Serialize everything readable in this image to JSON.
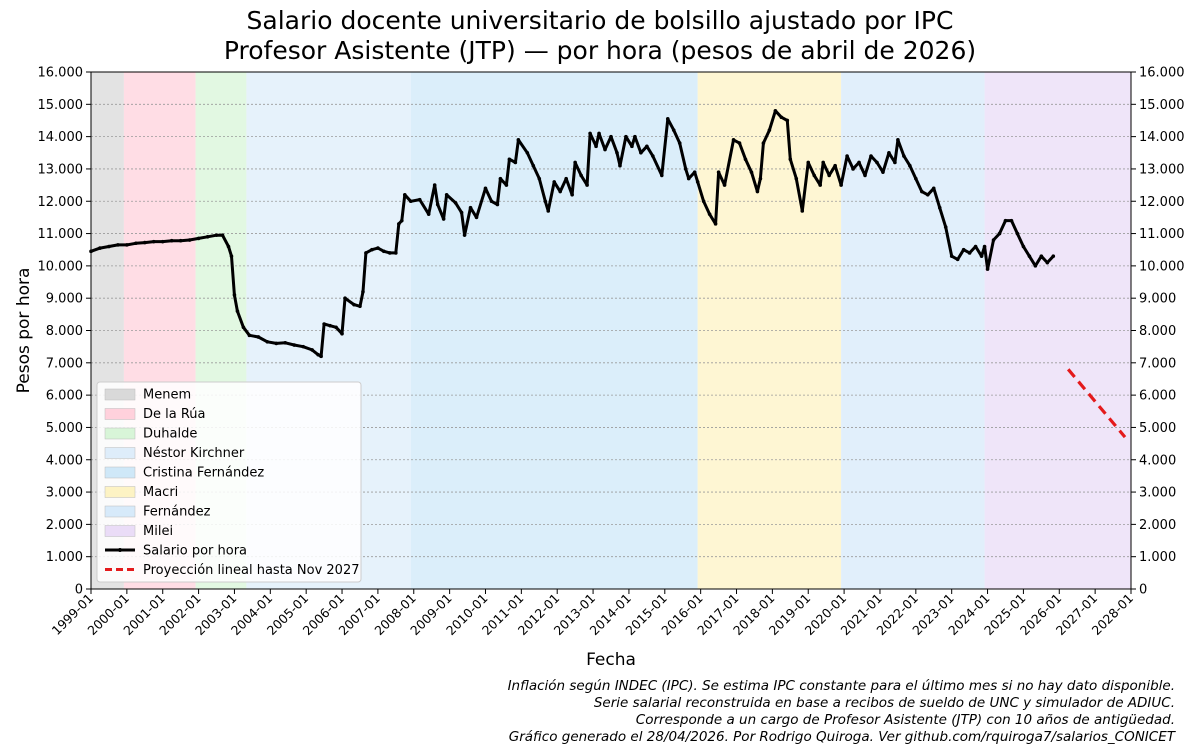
{
  "chart_data": {
    "type": "line",
    "title": "Salario docente universitario de bolsillo ajustado por IPC",
    "subtitle": "Profesor Asistente (JTP) — por hora (pesos de abril de 2026)",
    "xlabel": "Fecha",
    "ylabel": "Pesos por hora",
    "xlim": [
      "1999-01",
      "2028-01"
    ],
    "ylim": [
      0,
      16000
    ],
    "y_ticks": [
      0,
      1000,
      2000,
      3000,
      4000,
      5000,
      6000,
      7000,
      8000,
      9000,
      10000,
      11000,
      12000,
      13000,
      14000,
      15000,
      16000
    ],
    "y_tick_labels": [
      "0",
      "1.000",
      "2.000",
      "3.000",
      "4.000",
      "5.000",
      "6.000",
      "7.000",
      "8.000",
      "9.000",
      "10.000",
      "11.000",
      "12.000",
      "13.000",
      "14.000",
      "15.000",
      "16.000"
    ],
    "x_tick_labels": [
      "1999-01",
      "2000-01",
      "2001-01",
      "2002-01",
      "2003-01",
      "2004-01",
      "2005-01",
      "2006-01",
      "2007-01",
      "2008-01",
      "2009-01",
      "2010-01",
      "2011-01",
      "2012-01",
      "2013-01",
      "2014-01",
      "2015-01",
      "2016-01",
      "2017-01",
      "2018-01",
      "2019-01",
      "2020-01",
      "2021-01",
      "2022-01",
      "2023-01",
      "2024-01",
      "2025-01",
      "2026-01",
      "2027-01",
      "2028-01"
    ],
    "grid": "horizontal dashed",
    "legend_position": "lower-left",
    "periods": [
      {
        "name": "Menem",
        "start": "1999-01",
        "end": "1999-12",
        "color": "#d9d9d9"
      },
      {
        "name": "De la Rúa",
        "start": "1999-12",
        "end": "2001-12",
        "color": "#ffd1dc"
      },
      {
        "name": "Duhalde",
        "start": "2001-12",
        "end": "2003-05",
        "color": "#d8f5d8"
      },
      {
        "name": "Néstor Kirchner",
        "start": "2003-05",
        "end": "2007-12",
        "color": "#deedfa"
      },
      {
        "name": "Cristina Fernández",
        "start": "2007-12",
        "end": "2015-12",
        "color": "#cfe8f8"
      },
      {
        "name": "Macri",
        "start": "2015-12",
        "end": "2019-12",
        "color": "#fdf3c4"
      },
      {
        "name": "Fernández",
        "start": "2019-12",
        "end": "2023-12",
        "color": "#d7eafa"
      },
      {
        "name": "Milei",
        "start": "2023-12",
        "end": "2028-01",
        "color": "#eadcf7"
      }
    ],
    "series": [
      {
        "name": "Salario por hora",
        "color": "#000000",
        "style": "solid",
        "points": [
          [
            "1999-01",
            10450
          ],
          [
            "1999-04",
            10550
          ],
          [
            "1999-07",
            10600
          ],
          [
            "1999-10",
            10650
          ],
          [
            "2000-01",
            10650
          ],
          [
            "2000-04",
            10700
          ],
          [
            "2000-07",
            10720
          ],
          [
            "2000-10",
            10750
          ],
          [
            "2001-01",
            10750
          ],
          [
            "2001-04",
            10780
          ],
          [
            "2001-07",
            10780
          ],
          [
            "2001-10",
            10800
          ],
          [
            "2002-01",
            10850
          ],
          [
            "2002-04",
            10900
          ],
          [
            "2002-07",
            10950
          ],
          [
            "2002-09",
            10950
          ],
          [
            "2002-11",
            10600
          ],
          [
            "2002-12",
            10300
          ],
          [
            "2003-01",
            9100
          ],
          [
            "2003-02",
            8600
          ],
          [
            "2003-04",
            8100
          ],
          [
            "2003-06",
            7850
          ],
          [
            "2003-09",
            7800
          ],
          [
            "2003-12",
            7650
          ],
          [
            "2004-03",
            7600
          ],
          [
            "2004-06",
            7620
          ],
          [
            "2004-09",
            7550
          ],
          [
            "2004-12",
            7500
          ],
          [
            "2005-03",
            7400
          ],
          [
            "2005-05",
            7250
          ],
          [
            "2005-06",
            7200
          ],
          [
            "2005-07",
            8200
          ],
          [
            "2005-09",
            8150
          ],
          [
            "2005-11",
            8100
          ],
          [
            "2006-01",
            7900
          ],
          [
            "2006-02",
            9000
          ],
          [
            "2006-05",
            8800
          ],
          [
            "2006-07",
            8750
          ],
          [
            "2006-08",
            9200
          ],
          [
            "2006-09",
            10400
          ],
          [
            "2006-11",
            10500
          ],
          [
            "2007-01",
            10550
          ],
          [
            "2007-03",
            10450
          ],
          [
            "2007-05",
            10400
          ],
          [
            "2007-07",
            10400
          ],
          [
            "2007-08",
            11300
          ],
          [
            "2007-09",
            11400
          ],
          [
            "2007-10",
            12200
          ],
          [
            "2007-12",
            12000
          ],
          [
            "2008-03",
            12050
          ],
          [
            "2008-06",
            11600
          ],
          [
            "2008-08",
            12500
          ],
          [
            "2008-09",
            11900
          ],
          [
            "2008-11",
            11450
          ],
          [
            "2008-12",
            12200
          ],
          [
            "2009-03",
            11950
          ],
          [
            "2009-05",
            11650
          ],
          [
            "2009-06",
            10950
          ],
          [
            "2009-08",
            11800
          ],
          [
            "2009-10",
            11500
          ],
          [
            "2010-01",
            12400
          ],
          [
            "2010-03",
            12000
          ],
          [
            "2010-05",
            11900
          ],
          [
            "2010-06",
            12700
          ],
          [
            "2010-08",
            12500
          ],
          [
            "2010-09",
            13300
          ],
          [
            "2010-11",
            13200
          ],
          [
            "2010-12",
            13900
          ],
          [
            "2011-03",
            13500
          ],
          [
            "2011-05",
            13100
          ],
          [
            "2011-07",
            12700
          ],
          [
            "2011-09",
            12000
          ],
          [
            "2011-10",
            11700
          ],
          [
            "2011-12",
            12600
          ],
          [
            "2012-02",
            12300
          ],
          [
            "2012-04",
            12700
          ],
          [
            "2012-06",
            12200
          ],
          [
            "2012-07",
            13200
          ],
          [
            "2012-09",
            12800
          ],
          [
            "2012-11",
            12500
          ],
          [
            "2012-12",
            14100
          ],
          [
            "2013-02",
            13700
          ],
          [
            "2013-03",
            14100
          ],
          [
            "2013-05",
            13600
          ],
          [
            "2013-07",
            14000
          ],
          [
            "2013-09",
            13500
          ],
          [
            "2013-10",
            13100
          ],
          [
            "2013-12",
            14000
          ],
          [
            "2014-02",
            13700
          ],
          [
            "2014-03",
            14000
          ],
          [
            "2014-05",
            13500
          ],
          [
            "2014-07",
            13700
          ],
          [
            "2014-09",
            13400
          ],
          [
            "2014-12",
            12800
          ],
          [
            "2015-02",
            14550
          ],
          [
            "2015-04",
            14200
          ],
          [
            "2015-06",
            13800
          ],
          [
            "2015-08",
            13000
          ],
          [
            "2015-09",
            12700
          ],
          [
            "2015-11",
            12900
          ],
          [
            "2015-12",
            12600
          ],
          [
            "2016-02",
            12000
          ],
          [
            "2016-04",
            11600
          ],
          [
            "2016-06",
            11300
          ],
          [
            "2016-07",
            12900
          ],
          [
            "2016-09",
            12500
          ],
          [
            "2016-12",
            13900
          ],
          [
            "2017-02",
            13800
          ],
          [
            "2017-04",
            13300
          ],
          [
            "2017-06",
            12900
          ],
          [
            "2017-08",
            12300
          ],
          [
            "2017-09",
            12700
          ],
          [
            "2017-10",
            13800
          ],
          [
            "2017-12",
            14200
          ],
          [
            "2018-02",
            14800
          ],
          [
            "2018-04",
            14600
          ],
          [
            "2018-06",
            14500
          ],
          [
            "2018-07",
            13300
          ],
          [
            "2018-09",
            12700
          ],
          [
            "2018-11",
            11700
          ],
          [
            "2019-01",
            13200
          ],
          [
            "2019-03",
            12800
          ],
          [
            "2019-05",
            12500
          ],
          [
            "2019-06",
            13200
          ],
          [
            "2019-08",
            12800
          ],
          [
            "2019-10",
            13100
          ],
          [
            "2019-12",
            12500
          ],
          [
            "2020-02",
            13400
          ],
          [
            "2020-04",
            13000
          ],
          [
            "2020-06",
            13200
          ],
          [
            "2020-08",
            12800
          ],
          [
            "2020-10",
            13400
          ],
          [
            "2020-12",
            13200
          ],
          [
            "2021-02",
            12900
          ],
          [
            "2021-04",
            13500
          ],
          [
            "2021-06",
            13200
          ],
          [
            "2021-07",
            13900
          ],
          [
            "2021-09",
            13400
          ],
          [
            "2021-11",
            13100
          ],
          [
            "2022-01",
            12700
          ],
          [
            "2022-03",
            12300
          ],
          [
            "2022-05",
            12200
          ],
          [
            "2022-07",
            12400
          ],
          [
            "2022-09",
            11800
          ],
          [
            "2022-11",
            11200
          ],
          [
            "2023-01",
            10300
          ],
          [
            "2023-03",
            10200
          ],
          [
            "2023-05",
            10500
          ],
          [
            "2023-07",
            10400
          ],
          [
            "2023-09",
            10600
          ],
          [
            "2023-11",
            10300
          ],
          [
            "2023-12",
            10600
          ],
          [
            "2024-01",
            9900
          ],
          [
            "2024-03",
            10800
          ],
          [
            "2024-05",
            11000
          ],
          [
            "2024-07",
            11400
          ],
          [
            "2024-09",
            11400
          ],
          [
            "2024-11",
            11000
          ],
          [
            "2025-01",
            10600
          ],
          [
            "2025-03",
            10300
          ],
          [
            "2025-05",
            10000
          ],
          [
            "2025-07",
            10300
          ],
          [
            "2025-09",
            10100
          ],
          [
            "2025-11",
            10300
          ]
        ]
      },
      {
        "name": "Proyección lineal hasta Nov 2027",
        "color": "#e41a1c",
        "style": "dashed",
        "points": [
          [
            "2026-04",
            6800
          ],
          [
            "2027-11",
            4700
          ]
        ]
      }
    ]
  },
  "footnotes": [
    "Inflación según INDEC (IPC). Se estima IPC constante para el último mes si no hay dato disponible.",
    "Serie salarial reconstruida en base a recibos de sueldo de UNC y simulador de ADIUC.",
    "Corresponde a un cargo de Profesor Asistente (JTP) con 10 años de antigüedad.",
    "Gráfico generado el 28/04/2026. Por Rodrigo Quiroga. Ver github.com/rquiroga7/salarios_CONICET"
  ]
}
